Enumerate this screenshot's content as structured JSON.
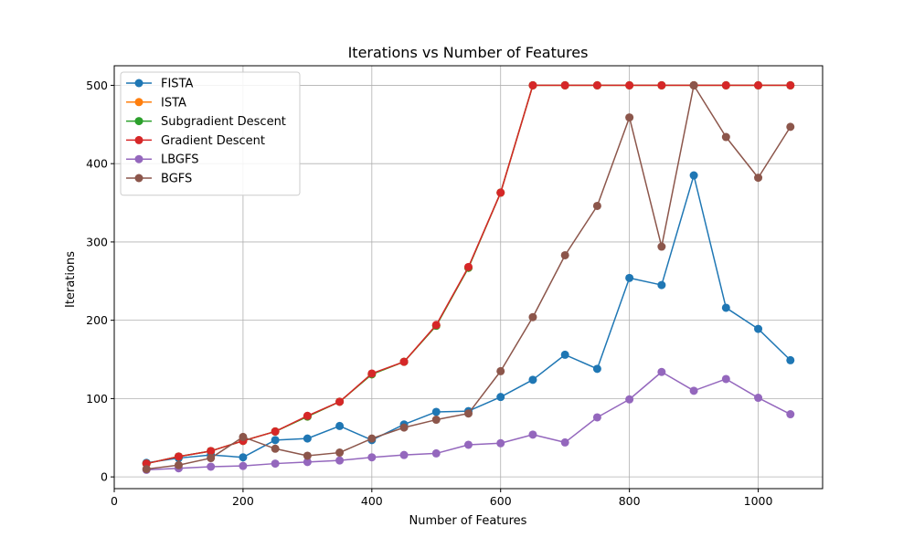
{
  "chart_data": {
    "type": "line",
    "title": "Iterations vs Number of Features",
    "xlabel": "Number of Features",
    "ylabel": "Iterations",
    "xlim": [
      0,
      1100
    ],
    "ylim": [
      -15,
      525
    ],
    "xticks": [
      0,
      200,
      400,
      600,
      800,
      1000
    ],
    "yticks": [
      0,
      100,
      200,
      300,
      400,
      500
    ],
    "grid": true,
    "legend": "top-left",
    "x": [
      50,
      100,
      150,
      200,
      250,
      300,
      350,
      400,
      450,
      500,
      550,
      600,
      650,
      700,
      750,
      800,
      850,
      900,
      950,
      1000,
      1050
    ],
    "series": [
      {
        "name": "FISTA",
        "color": "#1f77b4",
        "values": [
          18,
          24,
          28,
          25,
          47,
          49,
          65,
          47,
          67,
          83,
          84,
          102,
          124,
          156,
          138,
          254,
          245,
          385,
          216,
          189,
          149
        ]
      },
      {
        "name": "ISTA",
        "color": "#ff7f0e",
        "values": [
          17,
          26,
          33,
          46,
          58,
          77,
          96,
          131,
          147,
          193,
          267,
          363,
          500,
          500,
          500,
          500,
          500,
          500,
          500,
          500,
          500
        ]
      },
      {
        "name": "Subgradient Descent",
        "color": "#2ca02c",
        "values": [
          17,
          26,
          33,
          46,
          58,
          77,
          96,
          131,
          147,
          193,
          267,
          363,
          500,
          500,
          500,
          500,
          500,
          500,
          500,
          500,
          500
        ]
      },
      {
        "name": "Gradient Descent",
        "color": "#d62728",
        "values": [
          17,
          26,
          33,
          46,
          58,
          78,
          96,
          132,
          147,
          194,
          268,
          363,
          500,
          500,
          500,
          500,
          500,
          500,
          500,
          500,
          500
        ]
      },
      {
        "name": "LBGFS",
        "color": "#9467bd",
        "values": [
          9,
          11,
          13,
          14,
          17,
          19,
          21,
          25,
          28,
          30,
          41,
          43,
          54,
          44,
          76,
          99,
          134,
          110,
          125,
          101,
          80
        ]
      },
      {
        "name": "BGFS",
        "color": "#8c564b",
        "values": [
          10,
          15,
          24,
          51,
          36,
          27,
          31,
          49,
          63,
          73,
          81,
          135,
          204,
          283,
          346,
          459,
          294,
          500,
          434,
          382,
          447
        ]
      }
    ]
  }
}
